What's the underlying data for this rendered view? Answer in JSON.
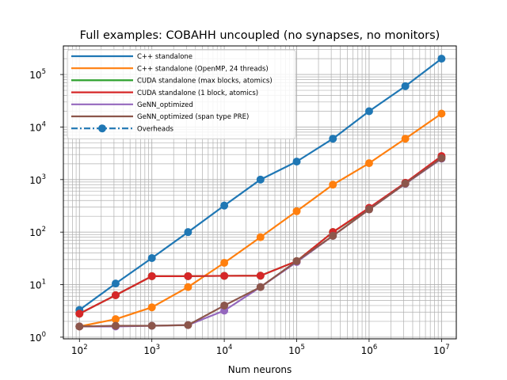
{
  "chart_data": {
    "type": "line",
    "title": "Full examples: COBAHH uncoupled (no synapses, no monitors)",
    "xlabel": "Num neurons",
    "ylabel": "",
    "xscale": "log",
    "yscale": "log",
    "xlim": [
      60,
      16000000
    ],
    "ylim": [
      0.93,
      350000
    ],
    "grid": "major and minor",
    "legend_position": "top-left",
    "x": [
      100,
      316,
      1000,
      3162,
      10000,
      31623,
      100000,
      316228,
      1000000,
      3162278,
      10000000
    ],
    "x_ticks": [
      {
        "value": 100,
        "base": "10",
        "exp": "2"
      },
      {
        "value": 1000,
        "base": "10",
        "exp": "3"
      },
      {
        "value": 10000,
        "base": "10",
        "exp": "4"
      },
      {
        "value": 100000,
        "base": "10",
        "exp": "5"
      },
      {
        "value": 1000000,
        "base": "10",
        "exp": "6"
      },
      {
        "value": 10000000,
        "base": "10",
        "exp": "7"
      }
    ],
    "y_ticks": [
      {
        "value": 1,
        "base": "10",
        "exp": "0"
      },
      {
        "value": 10,
        "base": "10",
        "exp": "1"
      },
      {
        "value": 100,
        "base": "10",
        "exp": "2"
      },
      {
        "value": 1000,
        "base": "10",
        "exp": "3"
      },
      {
        "value": 10000,
        "base": "10",
        "exp": "4"
      },
      {
        "value": 100000,
        "base": "10",
        "exp": "5"
      }
    ],
    "series": [
      {
        "name": "C++ standalone",
        "color": "#1f77b4",
        "style": "solid",
        "values": [
          3.3,
          10.5,
          32,
          100,
          320,
          1000,
          2200,
          6000,
          20000,
          60000,
          200000
        ]
      },
      {
        "name": "C++ standalone (OpenMP, 24 threads)",
        "color": "#ff7f0e",
        "style": "solid",
        "values": [
          1.6,
          2.2,
          3.7,
          9,
          26,
          80,
          250,
          800,
          2050,
          6000,
          18000
        ]
      },
      {
        "name": "CUDA standalone (max blocks, atomics)",
        "color": "#2ca02c",
        "style": "solid",
        "values": [
          2.8,
          6.3,
          14.5,
          14.5,
          14.7,
          14.8,
          28,
          100,
          280,
          850,
          2700
        ]
      },
      {
        "name": "CUDA standalone (1 block, atomics)",
        "color": "#d62728",
        "style": "solid",
        "values": [
          2.8,
          6.3,
          14.5,
          14.5,
          14.7,
          14.8,
          28,
          100,
          290,
          870,
          2800
        ]
      },
      {
        "name": "GeNN_optimized",
        "color": "#9467bd",
        "style": "solid",
        "values": [
          1.6,
          1.6,
          1.65,
          1.7,
          3.2,
          9,
          27,
          85,
          270,
          830,
          2500
        ]
      },
      {
        "name": "GeNN_optimized (span type PRE)",
        "color": "#8c564b",
        "style": "solid",
        "values": [
          1.6,
          1.65,
          1.65,
          1.7,
          4,
          9,
          28,
          85,
          270,
          840,
          2550
        ]
      }
    ],
    "legend": [
      {
        "label": "C++ standalone",
        "color": "#1f77b4",
        "style": "solid",
        "marker": false
      },
      {
        "label": "C++ standalone (OpenMP, 24 threads)",
        "color": "#ff7f0e",
        "style": "solid",
        "marker": false
      },
      {
        "label": "CUDA standalone (max blocks, atomics)",
        "color": "#2ca02c",
        "style": "solid",
        "marker": false
      },
      {
        "label": "CUDA standalone (1 block, atomics)",
        "color": "#d62728",
        "style": "solid",
        "marker": false
      },
      {
        "label": "GeNN_optimized",
        "color": "#9467bd",
        "style": "solid",
        "marker": false
      },
      {
        "label": "GeNN_optimized (span type PRE)",
        "color": "#8c564b",
        "style": "solid",
        "marker": false
      },
      {
        "label": "Overheads",
        "color": "#1f77b4",
        "style": "dashdot",
        "marker": true
      }
    ]
  }
}
